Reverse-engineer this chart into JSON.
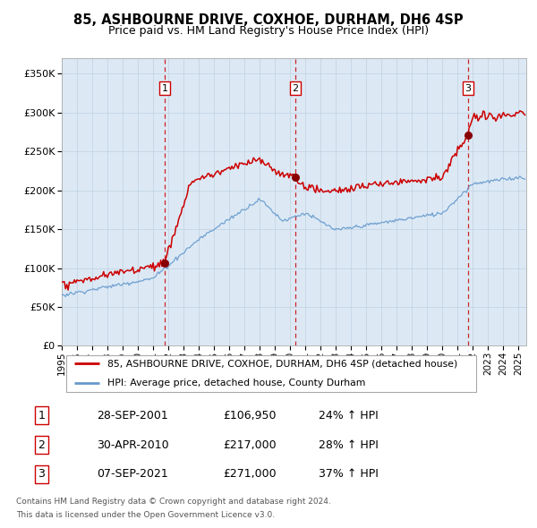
{
  "title": "85, ASHBOURNE DRIVE, COXHOE, DURHAM, DH6 4SP",
  "subtitle": "Price paid vs. HM Land Registry's House Price Index (HPI)",
  "legend_line1": "85, ASHBOURNE DRIVE, COXHOE, DURHAM, DH6 4SP (detached house)",
  "legend_line2": "HPI: Average price, detached house, County Durham",
  "footer1": "Contains HM Land Registry data © Crown copyright and database right 2024.",
  "footer2": "This data is licensed under the Open Government Licence v3.0.",
  "sale_info": [
    [
      "1",
      "28-SEP-2001",
      "£106,950",
      "24% ↑ HPI"
    ],
    [
      "2",
      "30-APR-2010",
      "£217,000",
      "28% ↑ HPI"
    ],
    [
      "3",
      "07-SEP-2021",
      "£271,000",
      "37% ↑ HPI"
    ]
  ],
  "sale_prices": [
    106950,
    217000,
    271000
  ],
  "sale_times": [
    2001.75,
    2010.333,
    2021.667
  ],
  "hpi_color": "#6699cc",
  "property_color": "#cc0000",
  "dot_color": "#880000",
  "bg_color": "#dce9f5",
  "grid_color": "#c0d0e0",
  "vline_color": "#cc0000",
  "ylim": [
    0,
    370000
  ],
  "year_start": 1995,
  "year_end": 2025
}
